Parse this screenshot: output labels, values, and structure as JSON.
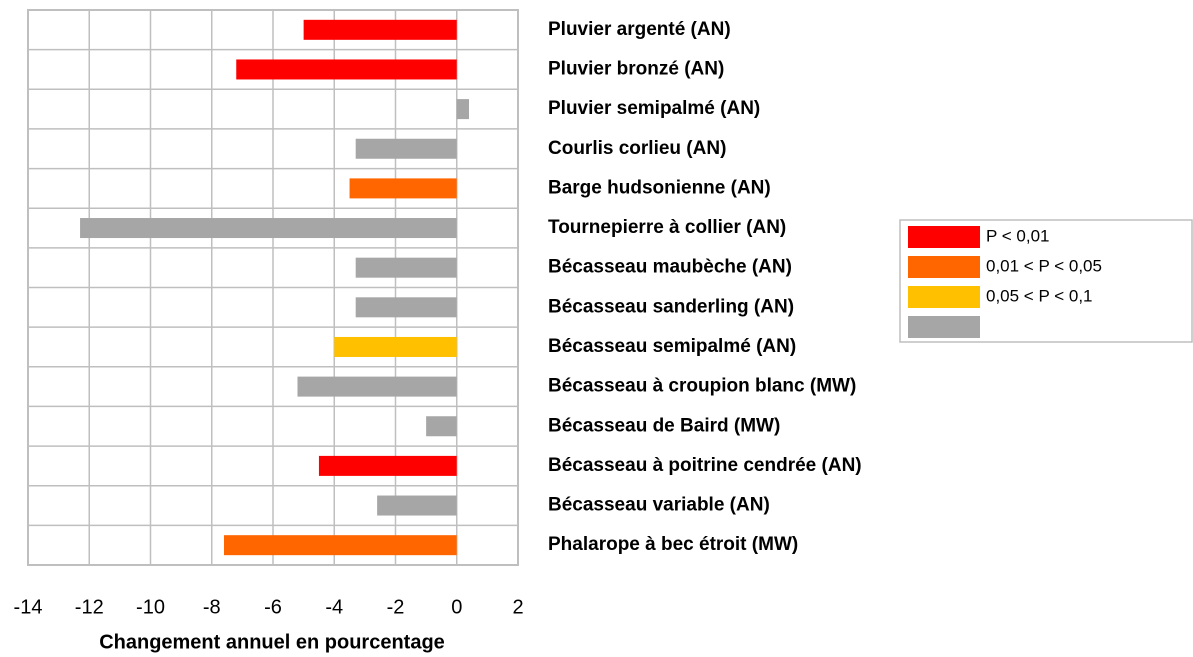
{
  "chart_data": {
    "type": "bar",
    "orientation": "horizontal",
    "x_label": "Changement annuel en pourcentage",
    "categories": [
      "Pluvier argenté (AN)",
      "Pluvier bronzé (AN)",
      "Pluvier semipalmé (AN)",
      "Courlis corlieu (AN)",
      "Barge hudsonienne (AN)",
      "Tournepierre à collier (AN)",
      "Bécasseau maubèche (AN)",
      "Bécasseau sanderling (AN)",
      "Bécasseau semipalmé (AN)",
      "Bécasseau à croupion blanc (MW)",
      "Bécasseau de Baird (MW)",
      "Bécasseau à poitrine cendrée (AN)",
      "Bécasseau variable (AN)",
      "Phalarope à bec étroit (MW)"
    ],
    "series": [
      {
        "name": "P < 0,01",
        "color": "#ff0000",
        "values": [
          -5.0,
          -7.2,
          null,
          null,
          null,
          null,
          null,
          null,
          null,
          null,
          null,
          -4.5,
          null,
          null
        ]
      },
      {
        "name": "0,01 < P < 0,05",
        "color": "#ff6600",
        "values": [
          null,
          null,
          null,
          null,
          -3.5,
          null,
          null,
          null,
          null,
          null,
          null,
          null,
          null,
          -7.6
        ]
      },
      {
        "name": "0,05 < P < 0,1",
        "color": "#ffc000",
        "values": [
          null,
          null,
          null,
          null,
          null,
          null,
          null,
          null,
          -4.0,
          null,
          null,
          null,
          null,
          null
        ]
      },
      {
        "name": "",
        "color": "#a6a6a6",
        "values": [
          null,
          null,
          0.4,
          -3.3,
          null,
          -12.3,
          -3.3,
          -3.3,
          null,
          -5.2,
          -1.0,
          null,
          -2.6,
          null
        ]
      }
    ],
    "xlim": [
      -14,
      2
    ],
    "xticks": [
      -14,
      -12,
      -10,
      -8,
      -6,
      -4,
      -2,
      0,
      2
    ],
    "grid": true,
    "legend": "right"
  }
}
